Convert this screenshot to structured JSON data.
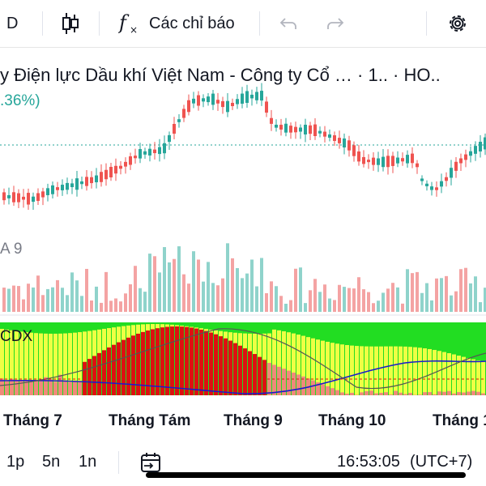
{
  "toolbar": {
    "interval_label": "D",
    "indicators_label": "Các chỉ báo",
    "icons": [
      "candles-icon",
      "fx-icon",
      "undo-icon",
      "redo-icon",
      "gear-icon"
    ]
  },
  "symbol": {
    "title": "y Điện lực Dầu khí Việt Nam - Công ty Cổ …  · 1.. · HO..",
    "change_pct": ".36%)"
  },
  "panes": {
    "volume_label": "A 9",
    "indicator_label": "CDX"
  },
  "x_axis": {
    "labels": [
      "Tháng 7",
      "Tháng Tám",
      "Tháng 9",
      "Tháng 10",
      "Tháng 1"
    ]
  },
  "bottom_bar": {
    "ranges": [
      "1p",
      "5n",
      "1n"
    ],
    "time": "16:53:05",
    "timezone": "(UTC+7)"
  },
  "colors": {
    "up": "#26a69a",
    "down": "#ef5350",
    "vol_up": "#8fd3cb",
    "vol_down": "#f4a3a3",
    "ind_green": "#22dd22",
    "ind_yellow": "#eeff44",
    "ind_red": "#dd1111",
    "ind_salmon": "#f08a7a"
  }
}
